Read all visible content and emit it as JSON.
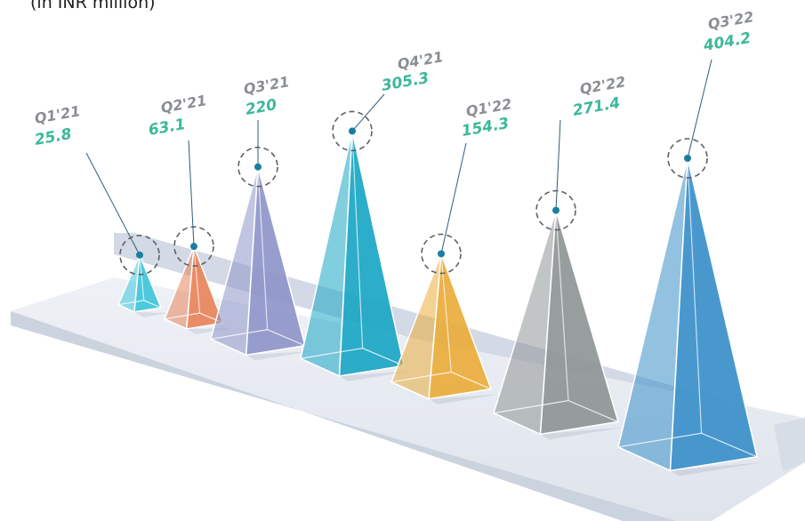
{
  "unit_label": "(in INR million)",
  "colors": {
    "value_text": "#3cb89a",
    "quarter_text": "#8a8d92",
    "leader_line": "#2f5d78",
    "dot": "#1a7ea0",
    "platform": "#e6eaf1"
  },
  "chart_data": {
    "type": "bar",
    "style": "3d-pyramids",
    "categories": [
      "Q1'21",
      "Q2'21",
      "Q3'21",
      "Q4'21",
      "Q1'22",
      "Q2'22",
      "Q3'22"
    ],
    "values": [
      25.8,
      63.1,
      220,
      305.3,
      154.3,
      271.4,
      404.2
    ],
    "value_labels": [
      "25.8",
      "63.1",
      "220",
      "305.3",
      "154.3",
      "271.4",
      "404.2"
    ],
    "series_colors": [
      "#3ec6da",
      "#e8845a",
      "#8e96c9",
      "#1aa6c4",
      "#e9ad3b",
      "#8f9596",
      "#3a8fc9"
    ],
    "ylabel": "(in INR million)"
  }
}
